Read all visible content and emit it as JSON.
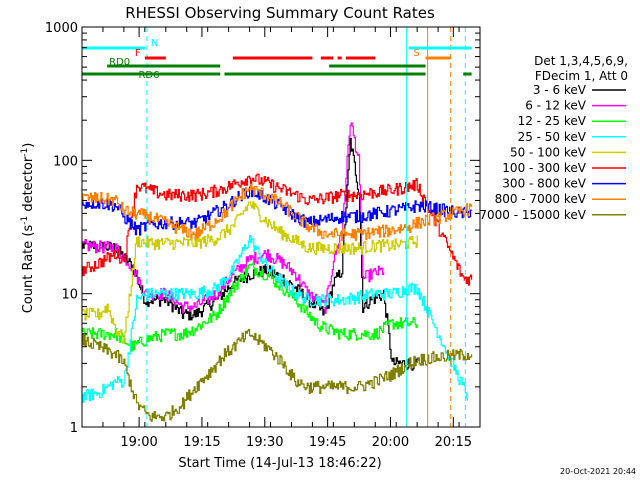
{
  "chart_data": {
    "type": "line",
    "title": "RHESSI Observing Summary Count Rates",
    "xlabel": "Start Time (14-Jul-13 18:46:22)",
    "ylabel_main": "Count Rate (s",
    "ylabel_sup1": "-1",
    "ylabel_mid": " detector",
    "ylabel_sup2": "-1",
    "ylabel_end": ")",
    "footer_date": "20-Oct-2021 20:44",
    "x_unit": "minutes since 18:46:22",
    "xlim": [
      0,
      95
    ],
    "ylim": [
      1,
      1000
    ],
    "yscale": "log",
    "x_ticks": [
      {
        "t": 13.63,
        "label": "19:00"
      },
      {
        "t": 28.63,
        "label": "19:15"
      },
      {
        "t": 43.63,
        "label": "19:30"
      },
      {
        "t": 58.63,
        "label": "19:45"
      },
      {
        "t": 73.63,
        "label": "20:00"
      },
      {
        "t": 88.63,
        "label": "20:15"
      }
    ],
    "y_ticks": [
      {
        "v": 1,
        "label": "1"
      },
      {
        "v": 10,
        "label": "10"
      },
      {
        "v": 100,
        "label": "100"
      },
      {
        "v": 1000,
        "label": "1000"
      }
    ],
    "legend_header": [
      "Det 1,3,4,5,6,9,",
      "FDecim 1, Att 0"
    ],
    "legend_position": "right, outside plot",
    "series": [
      {
        "name": "3 - 6 keV",
        "color": "#000000",
        "points": [
          [
            0,
            23
          ],
          [
            8,
            22
          ],
          [
            12,
            16
          ],
          [
            15,
            9
          ],
          [
            20,
            9
          ],
          [
            24,
            7
          ],
          [
            27,
            7
          ],
          [
            32,
            9
          ],
          [
            36,
            12
          ],
          [
            40,
            14
          ],
          [
            44,
            15
          ],
          [
            48,
            13
          ],
          [
            51,
            11
          ],
          [
            54,
            9
          ],
          [
            56,
            8
          ],
          [
            58,
            7
          ],
          [
            60,
            12
          ],
          [
            62,
            15
          ],
          [
            64,
            140
          ],
          [
            66,
            60
          ],
          [
            67,
            8
          ],
          [
            69,
            9
          ],
          [
            72,
            10
          ],
          [
            74,
            3
          ],
          [
            77,
            3
          ],
          [
            80,
            3
          ]
        ]
      },
      {
        "name": "6 - 12 keV",
        "color": "#ff00ff",
        "points": [
          [
            0,
            23
          ],
          [
            8,
            22
          ],
          [
            12,
            16
          ],
          [
            15,
            10
          ],
          [
            20,
            10
          ],
          [
            24,
            8
          ],
          [
            27,
            8
          ],
          [
            32,
            10
          ],
          [
            36,
            14
          ],
          [
            40,
            18
          ],
          [
            44,
            20
          ],
          [
            48,
            17
          ],
          [
            51,
            14
          ],
          [
            54,
            10
          ],
          [
            56,
            9
          ],
          [
            58,
            8
          ],
          [
            60,
            18
          ],
          [
            62,
            30
          ],
          [
            64,
            200
          ],
          [
            66,
            100
          ],
          [
            67,
            13
          ],
          [
            69,
            14
          ],
          [
            72,
            15
          ]
        ]
      },
      {
        "name": "12 - 25 keV",
        "color": "#00ff00",
        "points": [
          [
            0,
            5
          ],
          [
            8,
            5
          ],
          [
            12,
            4
          ],
          [
            15,
            4.5
          ],
          [
            20,
            5
          ],
          [
            24,
            5
          ],
          [
            27,
            5.5
          ],
          [
            32,
            7
          ],
          [
            36,
            11
          ],
          [
            40,
            16
          ],
          [
            44,
            14
          ],
          [
            48,
            11
          ],
          [
            51,
            9
          ],
          [
            54,
            7
          ],
          [
            56,
            6
          ],
          [
            58,
            5.5
          ],
          [
            62,
            5
          ],
          [
            66,
            5
          ],
          [
            70,
            5
          ],
          [
            74,
            6
          ],
          [
            78,
            6
          ],
          [
            80,
            6
          ]
        ]
      },
      {
        "name": "25 - 50 keV",
        "color": "#00ffff",
        "points": [
          [
            0,
            1.7
          ],
          [
            4,
            1.8
          ],
          [
            8,
            2.2
          ],
          [
            10,
            2.2
          ],
          [
            13,
            9
          ],
          [
            16,
            10
          ],
          [
            20,
            10
          ],
          [
            24,
            10
          ],
          [
            27,
            10
          ],
          [
            32,
            11
          ],
          [
            36,
            15
          ],
          [
            40,
            26
          ],
          [
            44,
            16
          ],
          [
            48,
            12
          ],
          [
            51,
            10
          ],
          [
            54,
            9
          ],
          [
            58,
            9
          ],
          [
            62,
            9
          ],
          [
            66,
            9.5
          ],
          [
            70,
            10
          ],
          [
            74,
            10
          ],
          [
            78,
            11
          ],
          [
            80,
            11
          ],
          [
            92,
            1.7
          ]
        ]
      },
      {
        "name": "50 - 100 keV",
        "color": "#cccc00",
        "points": [
          [
            0,
            7
          ],
          [
            4,
            7
          ],
          [
            6,
            8
          ],
          [
            8,
            5.5
          ],
          [
            10,
            4.5
          ],
          [
            13,
            25
          ],
          [
            16,
            24
          ],
          [
            20,
            24
          ],
          [
            24,
            24
          ],
          [
            27,
            24
          ],
          [
            32,
            26
          ],
          [
            36,
            32
          ],
          [
            40,
            48
          ],
          [
            44,
            35
          ],
          [
            48,
            28
          ],
          [
            51,
            25
          ],
          [
            54,
            22
          ],
          [
            58,
            22
          ],
          [
            62,
            22
          ],
          [
            66,
            22
          ],
          [
            70,
            23
          ],
          [
            74,
            23
          ],
          [
            78,
            24
          ],
          [
            80,
            25
          ]
        ]
      },
      {
        "name": "100 - 300 keV",
        "color": "#ff0000",
        "points": [
          [
            0,
            15
          ],
          [
            4,
            17
          ],
          [
            8,
            20
          ],
          [
            10,
            18
          ],
          [
            13,
            65
          ],
          [
            16,
            60
          ],
          [
            20,
            55
          ],
          [
            24,
            55
          ],
          [
            27,
            55
          ],
          [
            30,
            57
          ],
          [
            34,
            62
          ],
          [
            38,
            70
          ],
          [
            40,
            75
          ],
          [
            44,
            68
          ],
          [
            48,
            60
          ],
          [
            51,
            55
          ],
          [
            54,
            50
          ],
          [
            58,
            52
          ],
          [
            62,
            55
          ],
          [
            66,
            55
          ],
          [
            70,
            58
          ],
          [
            74,
            60
          ],
          [
            78,
            64
          ],
          [
            80,
            66
          ],
          [
            91,
            13
          ],
          [
            93,
            13
          ]
        ]
      },
      {
        "name": "300 - 800 keV",
        "color": "#0000ff",
        "points": [
          [
            0,
            48
          ],
          [
            4,
            48
          ],
          [
            8,
            46
          ],
          [
            10,
            38
          ],
          [
            13,
            30
          ],
          [
            16,
            33
          ],
          [
            20,
            34
          ],
          [
            24,
            34
          ],
          [
            27,
            34
          ],
          [
            30,
            38
          ],
          [
            34,
            45
          ],
          [
            38,
            55
          ],
          [
            40,
            60
          ],
          [
            44,
            52
          ],
          [
            48,
            44
          ],
          [
            51,
            38
          ],
          [
            54,
            34
          ],
          [
            58,
            36
          ],
          [
            62,
            38
          ],
          [
            66,
            38
          ],
          [
            70,
            40
          ],
          [
            74,
            42
          ],
          [
            78,
            44
          ],
          [
            80,
            46
          ],
          [
            91,
            40
          ],
          [
            93,
            42
          ]
        ]
      },
      {
        "name": "800 - 7000 keV",
        "color": "#ff8000",
        "points": [
          [
            0,
            52
          ],
          [
            4,
            52
          ],
          [
            8,
            50
          ],
          [
            10,
            42
          ],
          [
            13,
            40
          ],
          [
            16,
            38
          ],
          [
            20,
            34
          ],
          [
            24,
            30
          ],
          [
            27,
            28
          ],
          [
            30,
            32
          ],
          [
            34,
            40
          ],
          [
            38,
            55
          ],
          [
            40,
            62
          ],
          [
            44,
            55
          ],
          [
            48,
            46
          ],
          [
            51,
            38
          ],
          [
            54,
            32
          ],
          [
            58,
            28
          ],
          [
            62,
            28
          ],
          [
            66,
            28
          ],
          [
            70,
            29
          ],
          [
            74,
            30
          ],
          [
            78,
            32
          ],
          [
            80,
            34
          ],
          [
            91,
            42
          ],
          [
            93,
            44
          ]
        ]
      },
      {
        "name": "7000 - 15000 keV",
        "color": "#808000",
        "points": [
          [
            0,
            4.5
          ],
          [
            4,
            4
          ],
          [
            8,
            3.5
          ],
          [
            10,
            3
          ],
          [
            13,
            1.5
          ],
          [
            16,
            1.2
          ],
          [
            20,
            1.2
          ],
          [
            24,
            1.5
          ],
          [
            27,
            2
          ],
          [
            30,
            2.5
          ],
          [
            34,
            3.5
          ],
          [
            38,
            4.5
          ],
          [
            40,
            5
          ],
          [
            44,
            4
          ],
          [
            48,
            3
          ],
          [
            51,
            2.2
          ],
          [
            54,
            2
          ],
          [
            58,
            2
          ],
          [
            62,
            2
          ],
          [
            66,
            2
          ],
          [
            70,
            2.2
          ],
          [
            74,
            2.5
          ],
          [
            78,
            3
          ],
          [
            80,
            3.2
          ],
          [
            91,
            3.5
          ],
          [
            93,
            3.5
          ]
        ]
      }
    ],
    "state_bars": [
      {
        "label": "N",
        "color": "#00ffff",
        "segments": [
          [
            0,
            15
          ],
          [
            78,
            93
          ]
        ],
        "level": "top"
      },
      {
        "label": "F",
        "color": "#ff0000",
        "segments": [
          [
            15,
            20
          ],
          [
            36,
            55
          ],
          [
            57,
            60
          ],
          [
            61,
            62
          ],
          [
            63,
            70
          ]
        ],
        "level": "second"
      },
      {
        "label": "S",
        "color": "#ff8000",
        "segments": [
          [
            82,
            88
          ]
        ],
        "level": "second"
      },
      {
        "label": "RD0",
        "color": "#008000",
        "segments": [
          [
            6,
            33
          ],
          [
            59,
            82
          ]
        ],
        "level": "third"
      },
      {
        "label": "RD6",
        "color": "#008000",
        "segments": [
          [
            0,
            33
          ],
          [
            34,
            82
          ],
          [
            91,
            93
          ]
        ],
        "level": "fourth"
      }
    ],
    "vertical_markers": [
      {
        "t": 15.5,
        "color": "#00ffff",
        "style": "dashed"
      },
      {
        "t": 77.5,
        "color": "#00ffff",
        "style": "solid"
      },
      {
        "t": 82.5,
        "color": "#ff8000",
        "style": "solid"
      },
      {
        "t": 88,
        "color": "#ff8000",
        "style": "dashed"
      },
      {
        "t": 91.5,
        "color": "#00ffff",
        "style": "dashed"
      }
    ],
    "grid": false
  }
}
